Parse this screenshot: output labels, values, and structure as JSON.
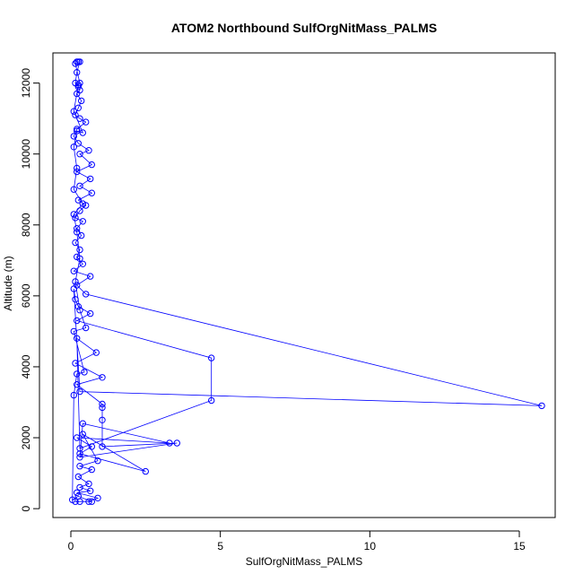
{
  "chart_data": {
    "type": "line",
    "title": "ATOM2 Northbound SulfOrgNitMass_PALMS",
    "xlabel": "SulfOrgNitMass_PALMS",
    "ylabel": "Altitude (m)",
    "xlim": [
      -0.6,
      16.2
    ],
    "ylim": [
      -250,
      12850
    ],
    "x_ticks": [
      0,
      5,
      10,
      15
    ],
    "y_ticks": [
      0,
      2000,
      4000,
      6000,
      8000,
      10000,
      12000
    ],
    "x_tick_labels": [
      "0",
      "5",
      "10",
      "15"
    ],
    "y_tick_labels": [
      "0",
      "2000",
      "4000",
      "6000",
      "8000",
      "10000",
      "12000"
    ],
    "grid": false,
    "legend": "none",
    "marker": "open-circle",
    "color": "#0000ff",
    "series": [
      {
        "points": [
          [
            0.2,
            12600
          ],
          [
            0.25,
            12600
          ],
          [
            0.3,
            12600
          ],
          [
            0.2,
            12300
          ],
          [
            0.15,
            12000
          ],
          [
            0.25,
            11900
          ],
          [
            0.3,
            11800
          ],
          [
            0.2,
            11700
          ],
          [
            0.35,
            11500
          ],
          [
            0.25,
            11300
          ],
          [
            0.15,
            11100
          ],
          [
            0.3,
            11000
          ],
          [
            0.5,
            10900
          ],
          [
            0.2,
            10700
          ],
          [
            0.1,
            10500
          ],
          [
            0.25,
            10300
          ],
          [
            0.6,
            10100
          ],
          [
            0.3,
            10000
          ],
          [
            0.7,
            9700
          ],
          [
            0.2,
            9500
          ],
          [
            0.65,
            9300
          ],
          [
            0.3,
            9100
          ],
          [
            0.7,
            8900
          ],
          [
            0.25,
            8700
          ],
          [
            0.5,
            8550
          ],
          [
            0.3,
            8400
          ],
          [
            0.15,
            8200
          ],
          [
            0.4,
            8100
          ],
          [
            0.2,
            7900
          ],
          [
            0.35,
            7700
          ],
          [
            0.15,
            7500
          ],
          [
            0.3,
            7300
          ],
          [
            0.2,
            7100
          ],
          [
            0.4,
            6900
          ],
          [
            0.1,
            6700
          ],
          [
            0.65,
            6550
          ],
          [
            0.2,
            6300
          ],
          [
            0.5,
            6050
          ],
          [
            15.75,
            2900
          ],
          [
            0.3,
            3300
          ],
          [
            0.1,
            6200
          ],
          [
            0.15,
            5900
          ],
          [
            0.25,
            5700
          ],
          [
            0.65,
            5500
          ],
          [
            0.2,
            5300
          ],
          [
            4.7,
            4250
          ],
          [
            4.7,
            3050
          ],
          [
            0.3,
            1700
          ],
          [
            0.2,
            4800
          ],
          [
            0.85,
            4400
          ],
          [
            0.15,
            4100
          ],
          [
            1.05,
            3700
          ],
          [
            0.2,
            3500
          ],
          [
            1.05,
            2950
          ],
          [
            1.05,
            2850
          ],
          [
            1.05,
            2500
          ],
          [
            1.05,
            1750
          ],
          [
            3.55,
            1850
          ],
          [
            0.3,
            1450
          ],
          [
            0.4,
            2400
          ],
          [
            3.3,
            1850
          ],
          [
            0.2,
            2000
          ],
          [
            0.7,
            1750
          ],
          [
            0.3,
            1550
          ],
          [
            2.5,
            1050
          ],
          [
            0.4,
            2100
          ],
          [
            0.9,
            1350
          ],
          [
            0.3,
            1200
          ],
          [
            0.7,
            1100
          ],
          [
            0.25,
            900
          ],
          [
            0.6,
            700
          ],
          [
            0.3,
            600
          ],
          [
            0.65,
            500
          ],
          [
            0.2,
            450
          ],
          [
            0.9,
            300
          ],
          [
            0.6,
            200
          ],
          [
            0.3,
            200
          ],
          [
            0.15,
            200
          ],
          [
            0.7,
            200
          ],
          [
            0.25,
            350
          ],
          [
            0.05,
            250
          ],
          [
            0.1,
            3200
          ],
          [
            0.2,
            3800
          ],
          [
            0.45,
            3850
          ],
          [
            0.1,
            5000
          ],
          [
            0.5,
            5100
          ],
          [
            0.3,
            5600
          ],
          [
            0.15,
            6400
          ],
          [
            0.3,
            7050
          ],
          [
            0.2,
            7800
          ],
          [
            0.1,
            8300
          ],
          [
            0.4,
            8600
          ],
          [
            0.1,
            9000
          ],
          [
            0.2,
            9600
          ],
          [
            0.1,
            10200
          ],
          [
            0.2,
            10650
          ],
          [
            0.4,
            10600
          ],
          [
            0.1,
            11200
          ],
          [
            0.25,
            11950
          ],
          [
            0.3,
            12000
          ],
          [
            0.15,
            12550
          ]
        ]
      }
    ]
  }
}
